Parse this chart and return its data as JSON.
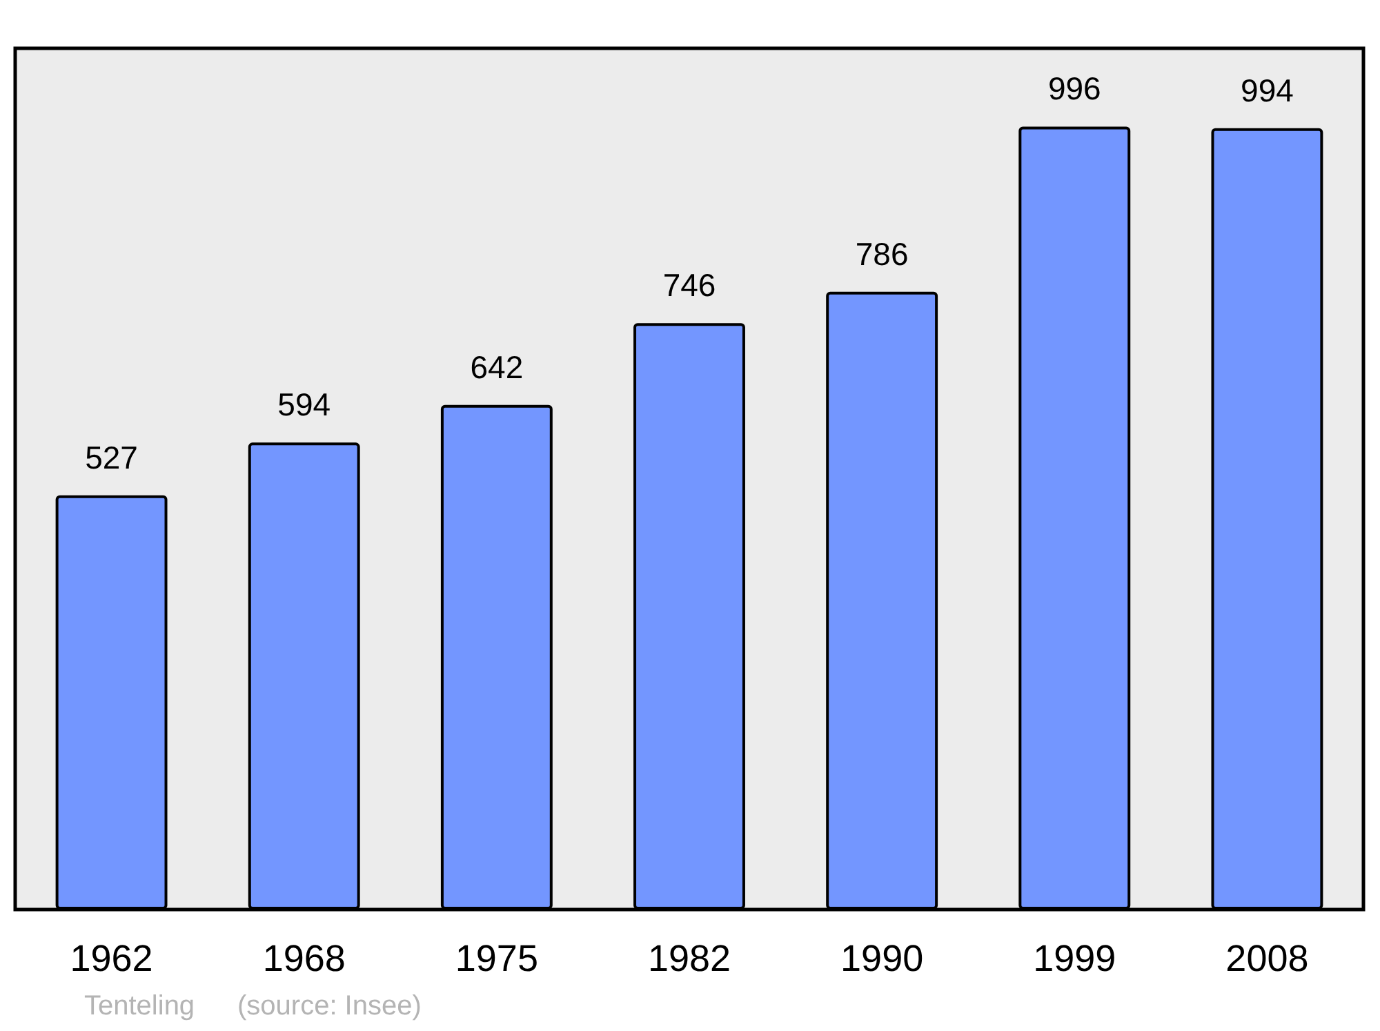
{
  "chart_data": {
    "type": "bar",
    "categories": [
      "1962",
      "1968",
      "1975",
      "1982",
      "1990",
      "1999",
      "2008"
    ],
    "values": [
      527,
      594,
      642,
      746,
      786,
      996,
      994
    ],
    "color": "#7396ff",
    "data_labels": true,
    "annotations": [
      "Tenteling",
      "(source: Insee)"
    ]
  }
}
